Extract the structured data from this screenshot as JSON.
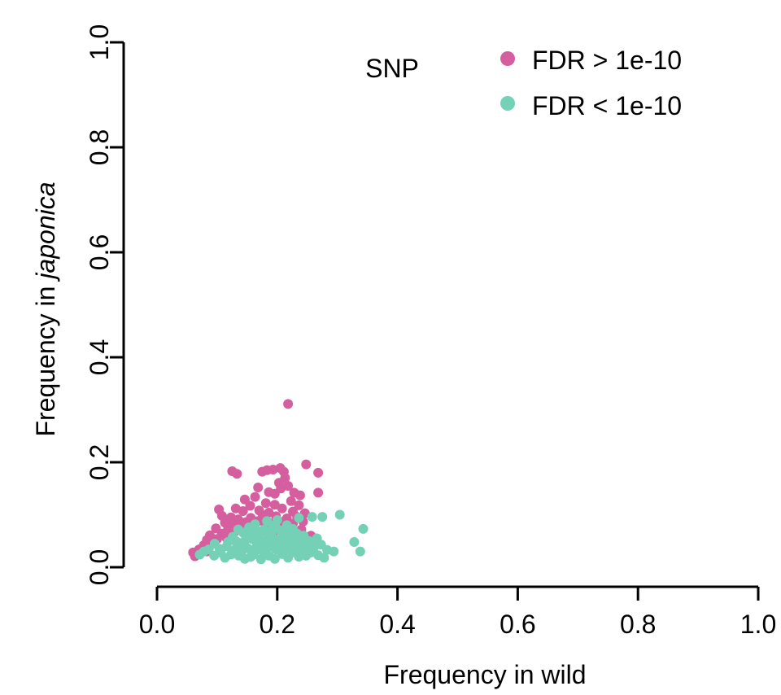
{
  "chart_data": {
    "type": "scatter",
    "title": "SNP",
    "xlabel": "Frequency in wild",
    "ylabel_prefix": "Frequency in",
    "ylabel_italic": "japonica",
    "xlim": [
      0,
      1
    ],
    "ylim": [
      0,
      1
    ],
    "x_ticks": [
      "0.0",
      "0.2",
      "0.4",
      "0.6",
      "0.8",
      "1.0"
    ],
    "y_ticks": [
      "0.0",
      "0.2",
      "0.4",
      "0.6",
      "0.8",
      "1.0"
    ],
    "legend_position": "top-right",
    "grid": false,
    "series": [
      {
        "name": "FDR > 1e-10",
        "color": "#d55e9f",
        "points": [
          [
            0.218,
            0.311
          ],
          [
            0.125,
            0.183
          ],
          [
            0.133,
            0.178
          ],
          [
            0.175,
            0.182
          ],
          [
            0.183,
            0.185
          ],
          [
            0.193,
            0.186
          ],
          [
            0.205,
            0.189
          ],
          [
            0.211,
            0.182
          ],
          [
            0.248,
            0.196
          ],
          [
            0.268,
            0.18
          ],
          [
            0.213,
            0.17
          ],
          [
            0.203,
            0.161
          ],
          [
            0.168,
            0.152
          ],
          [
            0.218,
            0.155
          ],
          [
            0.206,
            0.15
          ],
          [
            0.186,
            0.143
          ],
          [
            0.228,
            0.142
          ],
          [
            0.268,
            0.142
          ],
          [
            0.163,
            0.134
          ],
          [
            0.196,
            0.14
          ],
          [
            0.238,
            0.137
          ],
          [
            0.146,
            0.129
          ],
          [
            0.181,
            0.122
          ],
          [
            0.223,
            0.126
          ],
          [
            0.155,
            0.117
          ],
          [
            0.196,
            0.119
          ],
          [
            0.208,
            0.112
          ],
          [
            0.236,
            0.118
          ],
          [
            0.131,
            0.112
          ],
          [
            0.103,
            0.11
          ],
          [
            0.143,
            0.107
          ],
          [
            0.17,
            0.108
          ],
          [
            0.186,
            0.104
          ],
          [
            0.226,
            0.106
          ],
          [
            0.246,
            0.103
          ],
          [
            0.108,
            0.098
          ],
          [
            0.123,
            0.095
          ],
          [
            0.135,
            0.091
          ],
          [
            0.156,
            0.094
          ],
          [
            0.176,
            0.099
          ],
          [
            0.198,
            0.097
          ],
          [
            0.216,
            0.093
          ],
          [
            0.233,
            0.096
          ],
          [
            0.113,
            0.085
          ],
          [
            0.128,
            0.082
          ],
          [
            0.148,
            0.086
          ],
          [
            0.168,
            0.088
          ],
          [
            0.188,
            0.084
          ],
          [
            0.208,
            0.086
          ],
          [
            0.226,
            0.083
          ],
          [
            0.243,
            0.087
          ],
          [
            0.098,
            0.074
          ],
          [
            0.118,
            0.072
          ],
          [
            0.138,
            0.077
          ],
          [
            0.16,
            0.079
          ],
          [
            0.18,
            0.076
          ],
          [
            0.2,
            0.078
          ],
          [
            0.22,
            0.074
          ],
          [
            0.24,
            0.072
          ],
          [
            0.088,
            0.061
          ],
          [
            0.108,
            0.064
          ],
          [
            0.128,
            0.066
          ],
          [
            0.15,
            0.063
          ],
          [
            0.172,
            0.067
          ],
          [
            0.193,
            0.065
          ],
          [
            0.213,
            0.062
          ],
          [
            0.236,
            0.064
          ],
          [
            0.083,
            0.052
          ],
          [
            0.1,
            0.054
          ],
          [
            0.078,
            0.042
          ],
          [
            0.093,
            0.045
          ],
          [
            0.25,
            0.047
          ],
          [
            0.07,
            0.034
          ],
          [
            0.258,
            0.04
          ],
          [
            0.06,
            0.028
          ],
          [
            0.063,
            0.021
          ],
          [
            0.083,
            0.03
          ],
          [
            0.246,
            0.058
          ],
          [
            0.116,
            0.055
          ],
          [
            0.256,
            0.06
          ]
        ]
      },
      {
        "name": "FDR < 1e-10",
        "color": "#74d1b6",
        "points": [
          [
            0.304,
            0.1
          ],
          [
            0.275,
            0.096
          ],
          [
            0.258,
            0.096
          ],
          [
            0.236,
            0.094
          ],
          [
            0.343,
            0.073
          ],
          [
            0.338,
            0.03
          ],
          [
            0.328,
            0.048
          ],
          [
            0.294,
            0.03
          ],
          [
            0.283,
            0.033
          ],
          [
            0.273,
            0.043
          ],
          [
            0.266,
            0.055
          ],
          [
            0.278,
            0.018
          ],
          [
            0.268,
            0.023
          ],
          [
            0.071,
            0.024
          ],
          [
            0.078,
            0.03
          ],
          [
            0.086,
            0.034
          ],
          [
            0.096,
            0.045
          ],
          [
            0.095,
            0.022
          ],
          [
            0.106,
            0.028
          ],
          [
            0.116,
            0.04
          ],
          [
            0.113,
            0.018
          ],
          [
            0.126,
            0.031
          ],
          [
            0.126,
            0.058
          ],
          [
            0.136,
            0.022
          ],
          [
            0.138,
            0.046
          ],
          [
            0.143,
            0.066
          ],
          [
            0.146,
            0.016
          ],
          [
            0.151,
            0.036
          ],
          [
            0.153,
            0.076
          ],
          [
            0.158,
            0.054
          ],
          [
            0.161,
            0.024
          ],
          [
            0.163,
            0.082
          ],
          [
            0.166,
            0.041
          ],
          [
            0.17,
            0.063
          ],
          [
            0.173,
            0.015
          ],
          [
            0.176,
            0.03
          ],
          [
            0.178,
            0.072
          ],
          [
            0.18,
            0.05
          ],
          [
            0.183,
            0.088
          ],
          [
            0.186,
            0.022
          ],
          [
            0.188,
            0.04
          ],
          [
            0.191,
            0.06
          ],
          [
            0.193,
            0.079
          ],
          [
            0.196,
            0.016
          ],
          [
            0.198,
            0.034
          ],
          [
            0.2,
            0.09
          ],
          [
            0.203,
            0.052
          ],
          [
            0.205,
            0.07
          ],
          [
            0.208,
            0.025
          ],
          [
            0.211,
            0.043
          ],
          [
            0.213,
            0.062
          ],
          [
            0.216,
            0.08
          ],
          [
            0.218,
            0.018
          ],
          [
            0.221,
            0.036
          ],
          [
            0.223,
            0.055
          ],
          [
            0.226,
            0.073
          ],
          [
            0.228,
            0.028
          ],
          [
            0.231,
            0.046
          ],
          [
            0.233,
            0.064
          ],
          [
            0.236,
            0.02
          ],
          [
            0.238,
            0.038
          ],
          [
            0.241,
            0.056
          ],
          [
            0.243,
            0.03
          ],
          [
            0.246,
            0.045
          ],
          [
            0.248,
            0.022
          ],
          [
            0.251,
            0.035
          ],
          [
            0.253,
            0.05
          ],
          [
            0.256,
            0.028
          ],
          [
            0.261,
            0.038
          ],
          [
            0.131,
            0.05
          ],
          [
            0.141,
            0.03
          ],
          [
            0.148,
            0.056
          ],
          [
            0.156,
            0.02
          ],
          [
            0.168,
            0.058
          ],
          [
            0.181,
            0.026
          ],
          [
            0.195,
            0.045
          ],
          [
            0.21,
            0.03
          ],
          [
            0.225,
            0.048
          ],
          [
            0.24,
            0.03
          ],
          [
            0.118,
            0.048
          ],
          [
            0.104,
            0.035
          ],
          [
            0.135,
            0.072
          ],
          [
            0.158,
            0.07
          ],
          [
            0.175,
            0.046
          ],
          [
            0.19,
            0.068
          ],
          [
            0.206,
            0.04
          ],
          [
            0.22,
            0.066
          ],
          [
            0.235,
            0.05
          ],
          [
            0.25,
            0.04
          ],
          [
            0.145,
            0.044
          ],
          [
            0.162,
            0.032
          ],
          [
            0.171,
            0.068
          ],
          [
            0.185,
            0.056
          ],
          [
            0.199,
            0.074
          ],
          [
            0.215,
            0.048
          ],
          [
            0.229,
            0.06
          ],
          [
            0.244,
            0.06
          ],
          [
            0.123,
            0.024
          ],
          [
            0.133,
            0.04
          ],
          [
            0.152,
            0.064
          ]
        ]
      }
    ]
  }
}
